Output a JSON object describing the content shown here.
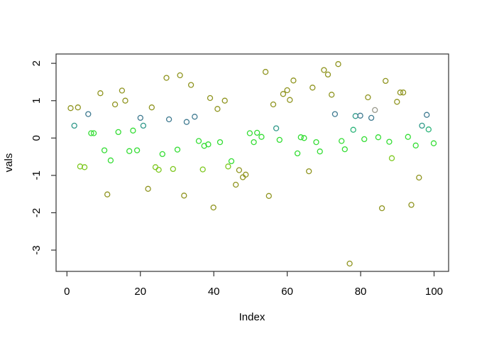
{
  "chart_data": {
    "type": "scatter",
    "title": "",
    "xlabel": "Index",
    "ylabel": "vals",
    "xlim": [
      -2.96,
      103.96
    ],
    "ylim": [
      -3.57,
      2.25
    ],
    "x_ticks": [
      0,
      20,
      40,
      60,
      80,
      100
    ],
    "y_ticks": [
      -3,
      -2,
      -1,
      0,
      1,
      2
    ],
    "grid": false,
    "legend": "none",
    "marker": "open-circle",
    "palette": {
      "o": "#8f941f",
      "y": "#7dc81f",
      "g": "#33dd33",
      "e": "#2bb479",
      "t": "#30998a",
      "s": "#3f7a90",
      "G": "#9a9a8c"
    },
    "points": [
      [
        1,
        0.8,
        "o"
      ],
      [
        2,
        0.33,
        "t"
      ],
      [
        3,
        0.82,
        "o"
      ],
      [
        3.6,
        -0.76,
        "y"
      ],
      [
        4.8,
        -0.78,
        "y"
      ],
      [
        5.8,
        0.64,
        "s"
      ],
      [
        6.6,
        0.13,
        "g"
      ],
      [
        7.3,
        0.13,
        "g"
      ],
      [
        9.1,
        1.2,
        "o"
      ],
      [
        10.2,
        -0.33,
        "g"
      ],
      [
        11,
        -1.51,
        "o"
      ],
      [
        11.9,
        -0.6,
        "g"
      ],
      [
        13.1,
        0.9,
        "o"
      ],
      [
        14,
        0.16,
        "g"
      ],
      [
        15,
        1.27,
        "o"
      ],
      [
        15.9,
        1,
        "o"
      ],
      [
        17,
        -0.35,
        "g"
      ],
      [
        18,
        0.2,
        "g"
      ],
      [
        19.1,
        -0.33,
        "g"
      ],
      [
        20,
        0.54,
        "s"
      ],
      [
        20.8,
        0.33,
        "t"
      ],
      [
        22.1,
        -1.36,
        "o"
      ],
      [
        23.1,
        0.82,
        "o"
      ],
      [
        24.1,
        -0.78,
        "y"
      ],
      [
        25,
        -0.85,
        "y"
      ],
      [
        26,
        -0.43,
        "g"
      ],
      [
        27.1,
        1.61,
        "o"
      ],
      [
        27.8,
        0.5,
        "s"
      ],
      [
        28.9,
        -0.83,
        "y"
      ],
      [
        30.1,
        -0.31,
        "g"
      ],
      [
        30.8,
        1.68,
        "o"
      ],
      [
        31.9,
        -1.54,
        "o"
      ],
      [
        32.6,
        0.43,
        "s"
      ],
      [
        33.8,
        1.42,
        "o"
      ],
      [
        34.8,
        0.57,
        "s"
      ],
      [
        35.9,
        -0.08,
        "g"
      ],
      [
        37,
        -0.84,
        "y"
      ],
      [
        37.4,
        -0.21,
        "g"
      ],
      [
        38.5,
        -0.17,
        "g"
      ],
      [
        39,
        1.07,
        "o"
      ],
      [
        39.9,
        -1.86,
        "o"
      ],
      [
        41,
        0.78,
        "o"
      ],
      [
        41.7,
        -0.11,
        "g"
      ],
      [
        43,
        1,
        "o"
      ],
      [
        43.9,
        -0.76,
        "y"
      ],
      [
        44.8,
        -0.62,
        "g"
      ],
      [
        46,
        -1.25,
        "o"
      ],
      [
        46.9,
        -0.86,
        "o"
      ],
      [
        47.9,
        -1.05,
        "o"
      ],
      [
        48.7,
        -0.98,
        "o"
      ],
      [
        49.8,
        0.13,
        "g"
      ],
      [
        50.9,
        -0.11,
        "g"
      ],
      [
        51.8,
        0.14,
        "g"
      ],
      [
        53,
        0.03,
        "g"
      ],
      [
        54.1,
        1.77,
        "o"
      ],
      [
        55,
        -1.55,
        "o"
      ],
      [
        56.2,
        0.9,
        "o"
      ],
      [
        57,
        0.26,
        "t"
      ],
      [
        57.9,
        -0.05,
        "g"
      ],
      [
        58.9,
        1.18,
        "o"
      ],
      [
        60,
        1.28,
        "o"
      ],
      [
        60.7,
        1.02,
        "o"
      ],
      [
        61.7,
        1.54,
        "o"
      ],
      [
        62.8,
        -0.41,
        "g"
      ],
      [
        63.7,
        0.02,
        "g"
      ],
      [
        64.6,
        0,
        "g"
      ],
      [
        65.9,
        -0.89,
        "o"
      ],
      [
        66.9,
        1.35,
        "o"
      ],
      [
        67.9,
        -0.11,
        "g"
      ],
      [
        68.9,
        -0.36,
        "g"
      ],
      [
        70,
        1.82,
        "o"
      ],
      [
        71.1,
        1.7,
        "o"
      ],
      [
        72.1,
        1.16,
        "o"
      ],
      [
        73,
        0.64,
        "s"
      ],
      [
        73.9,
        1.98,
        "o"
      ],
      [
        74.8,
        -0.08,
        "g"
      ],
      [
        75.7,
        -0.3,
        "g"
      ],
      [
        77,
        -3.36,
        "o"
      ],
      [
        78,
        0.22,
        "e"
      ],
      [
        78.6,
        0.59,
        "t"
      ],
      [
        79.9,
        0.6,
        "s"
      ],
      [
        81,
        -0.03,
        "g"
      ],
      [
        82,
        1.09,
        "o"
      ],
      [
        82.9,
        0.54,
        "s"
      ],
      [
        83.9,
        0.75,
        "G"
      ],
      [
        84.8,
        0.02,
        "g"
      ],
      [
        85.8,
        -1.88,
        "o"
      ],
      [
        86.8,
        1.53,
        "o"
      ],
      [
        87.8,
        -0.1,
        "g"
      ],
      [
        88.5,
        -0.54,
        "y"
      ],
      [
        89.9,
        0.97,
        "o"
      ],
      [
        90.8,
        1.22,
        "o"
      ],
      [
        91.6,
        1.22,
        "o"
      ],
      [
        92.9,
        0.03,
        "g"
      ],
      [
        93.8,
        -1.79,
        "o"
      ],
      [
        95,
        -0.2,
        "g"
      ],
      [
        95.9,
        -1.06,
        "o"
      ],
      [
        96.7,
        0.33,
        "t"
      ],
      [
        98,
        0.62,
        "s"
      ],
      [
        98.5,
        0.23,
        "e"
      ],
      [
        99.9,
        -0.14,
        "g"
      ]
    ]
  }
}
